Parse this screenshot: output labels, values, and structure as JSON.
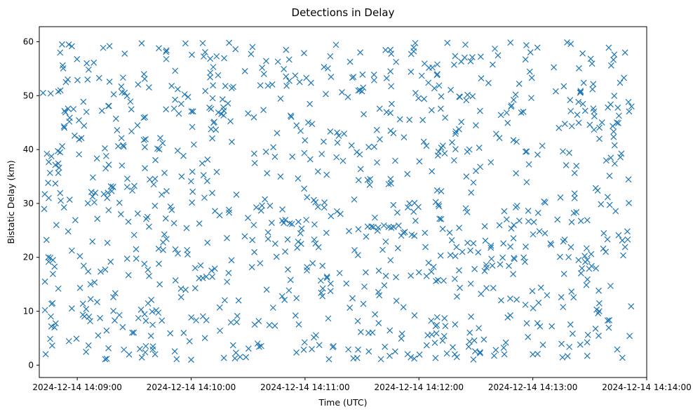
{
  "chart_data": {
    "type": "scatter",
    "title": "Detections in Delay",
    "xlabel": "Time (UTC)",
    "ylabel": "Bistatic Delay (km)",
    "marker": "x",
    "color": "#1f77b4",
    "grid": false,
    "legend": "none",
    "x_axis": {
      "start": "2024-12-14T14:08:40",
      "end": "2024-12-14T14:14:00",
      "ticks": [
        "2024-12-14 14:09:00",
        "2024-12-14 14:10:00",
        "2024-12-14 14:11:00",
        "2024-12-14 14:12:00",
        "2024-12-14 14:13:00",
        "2024-12-14 14:14:00"
      ]
    },
    "y_axis": {
      "ylim": [
        -2.3,
        62.8
      ],
      "ticks": [
        0,
        10,
        20,
        30,
        40,
        50,
        60
      ]
    },
    "point_count": 1000,
    "data_range": {
      "x_first": "2024-12-14T14:08:42",
      "x_last": "2024-12-14T14:13:52",
      "y_min": 1,
      "y_max": 60
    },
    "points": [
      [
        "2024-12-14T14:08:42",
        50.5
      ],
      [
        "2024-12-14T14:08:43",
        15.5
      ],
      [
        "2024-12-14T14:08:43",
        10.2
      ],
      [
        "2024-12-14T14:08:44",
        39.2
      ],
      [
        "2024-12-14T14:08:45",
        31.0
      ],
      [
        "2024-12-14T14:08:45",
        37.7
      ],
      [
        "2024-12-14T14:08:46",
        50.4
      ],
      [
        "2024-12-14T14:08:47",
        11.5
      ],
      [
        "2024-12-14T14:08:48",
        7.0
      ],
      [
        "2024-12-14T14:08:49",
        26.0
      ],
      [
        "2024-12-14T14:08:50",
        37.4
      ],
      [
        "2024-12-14T14:08:51",
        58.0
      ],
      [
        "2024-12-14T14:08:51",
        39.5
      ],
      [
        "2024-12-14T14:08:52",
        59.5
      ],
      [
        "2024-12-14T14:08:53",
        44.3
      ],
      [
        "2024-12-14T14:08:55",
        53.0
      ],
      [
        "2024-12-14T14:08:56",
        30.7
      ],
      [
        "2024-12-14T14:08:58",
        47.5
      ],
      [
        "2024-12-14T14:08:59",
        26.9
      ],
      [
        "2024-12-14T14:09:01",
        41.9
      ],
      [
        "2024-12-14T14:09:03",
        11.4
      ],
      [
        "2024-12-14T14:09:05",
        56.0
      ],
      [
        "2024-12-14T14:09:07",
        15.0
      ],
      [
        "2024-12-14T14:09:09",
        30.2
      ],
      [
        "2024-12-14T14:09:11",
        5.5
      ],
      [
        "2024-12-14T14:09:13",
        47.2
      ],
      [
        "2024-12-14T14:09:15",
        36.5
      ],
      [
        "2024-12-14T14:09:17",
        59.2
      ],
      [
        "2024-12-14T14:09:19",
        12.6
      ],
      [
        "2024-12-14T14:09:21",
        43.6
      ],
      [
        "2024-12-14T14:09:23",
        28.0
      ],
      [
        "2024-12-14T14:09:25",
        57.8
      ],
      [
        "2024-12-14T14:09:27",
        16.7
      ],
      [
        "2024-12-14T14:09:29",
        32.4
      ],
      [
        "2024-12-14T14:09:31",
        21.5
      ],
      [
        "2024-12-14T14:09:33",
        3.0
      ],
      [
        "2024-12-14T14:09:35",
        45.9
      ],
      [
        "2024-12-14T14:09:37",
        27.5
      ],
      [
        "2024-12-14T14:09:39",
        12.1
      ],
      [
        "2024-12-14T14:09:41",
        2.0
      ],
      [
        "2024-12-14T14:09:43",
        58.8
      ],
      [
        "2024-12-14T14:09:45",
        41.2
      ],
      [
        "2024-12-14T14:09:47",
        23.4
      ],
      [
        "2024-12-14T14:09:49",
        5.9
      ],
      [
        "2024-12-14T14:09:51",
        47.6
      ],
      [
        "2024-12-14T14:09:53",
        20.7
      ],
      [
        "2024-12-14T14:09:55",
        35.0
      ],
      [
        "2024-12-14T14:09:57",
        59.7
      ],
      [
        "2024-12-14T14:10:00",
        1.0
      ],
      [
        "2024-12-14T14:10:05",
        18.5
      ],
      [
        "2024-12-14T14:10:10",
        53.4
      ],
      [
        "2024-12-14T14:10:15",
        27.8
      ],
      [
        "2024-12-14T14:10:20",
        59.8
      ],
      [
        "2024-12-14T14:10:25",
        12.0
      ],
      [
        "2024-12-14T14:10:30",
        46.7
      ],
      [
        "2024-12-14T14:10:35",
        4.0
      ],
      [
        "2024-12-14T14:10:40",
        35.6
      ],
      [
        "2024-12-14T14:10:45",
        20.1
      ],
      [
        "2024-12-14T14:10:50",
        58.5
      ],
      [
        "2024-12-14T14:10:55",
        9.2
      ],
      [
        "2024-12-14T14:11:00",
        41.7
      ],
      [
        "2024-12-14T14:11:05",
        26.1
      ],
      [
        "2024-12-14T14:11:10",
        55.3
      ],
      [
        "2024-12-14T14:11:15",
        3.5
      ],
      [
        "2024-12-14T14:11:20",
        37.9
      ],
      [
        "2024-12-14T14:11:25",
        12.4
      ],
      [
        "2024-12-14T14:11:30",
        50.8
      ],
      [
        "2024-12-14T14:11:33",
        25.7
      ],
      [
        "2024-12-14T14:11:35",
        25.7
      ],
      [
        "2024-12-14T14:11:36",
        25.6
      ],
      [
        "2024-12-14T14:11:40",
        1.1
      ],
      [
        "2024-12-14T14:11:45",
        58.5
      ],
      [
        "2024-12-14T14:11:50",
        45.6
      ],
      [
        "2024-12-14T14:11:55",
        30.0
      ],
      [
        "2024-12-14T14:12:00",
        17.2
      ],
      [
        "2024-12-14T14:12:05",
        52.4
      ],
      [
        "2024-12-14T14:12:10",
        38.9
      ],
      [
        "2024-12-14T14:12:15",
        59.8
      ],
      [
        "2024-12-14T14:12:20",
        1.5
      ],
      [
        "2024-12-14T14:12:25",
        35.0
      ],
      [
        "2024-12-14T14:12:30",
        44.5
      ],
      [
        "2024-12-14T14:12:35",
        23.1
      ],
      [
        "2024-12-14T14:12:40",
        58.7
      ],
      [
        "2024-12-14T14:12:45",
        2.0
      ],
      [
        "2024-12-14T14:12:50",
        26.0
      ],
      [
        "2024-12-14T14:12:55",
        47.0
      ],
      [
        "2024-12-14T14:13:00",
        2.0
      ],
      [
        "2024-12-14T14:13:05",
        40.7
      ],
      [
        "2024-12-14T14:13:10",
        7.2
      ],
      [
        "2024-12-14T14:13:15",
        12.6
      ],
      [
        "2024-12-14T14:13:20",
        59.6
      ],
      [
        "2024-12-14T14:13:25",
        3.8
      ],
      [
        "2024-12-14T14:13:30",
        44.6
      ],
      [
        "2024-12-14T14:13:35",
        10.0
      ],
      [
        "2024-12-14T14:13:40",
        58.9
      ],
      [
        "2024-12-14T14:13:45",
        44.9
      ],
      [
        "2024-12-14T14:13:48",
        53.3
      ],
      [
        "2024-12-14T14:13:50",
        23.3
      ],
      [
        "2024-12-14T14:13:51",
        5.4
      ],
      [
        "2024-12-14T14:13:52",
        48.0
      ]
    ]
  }
}
